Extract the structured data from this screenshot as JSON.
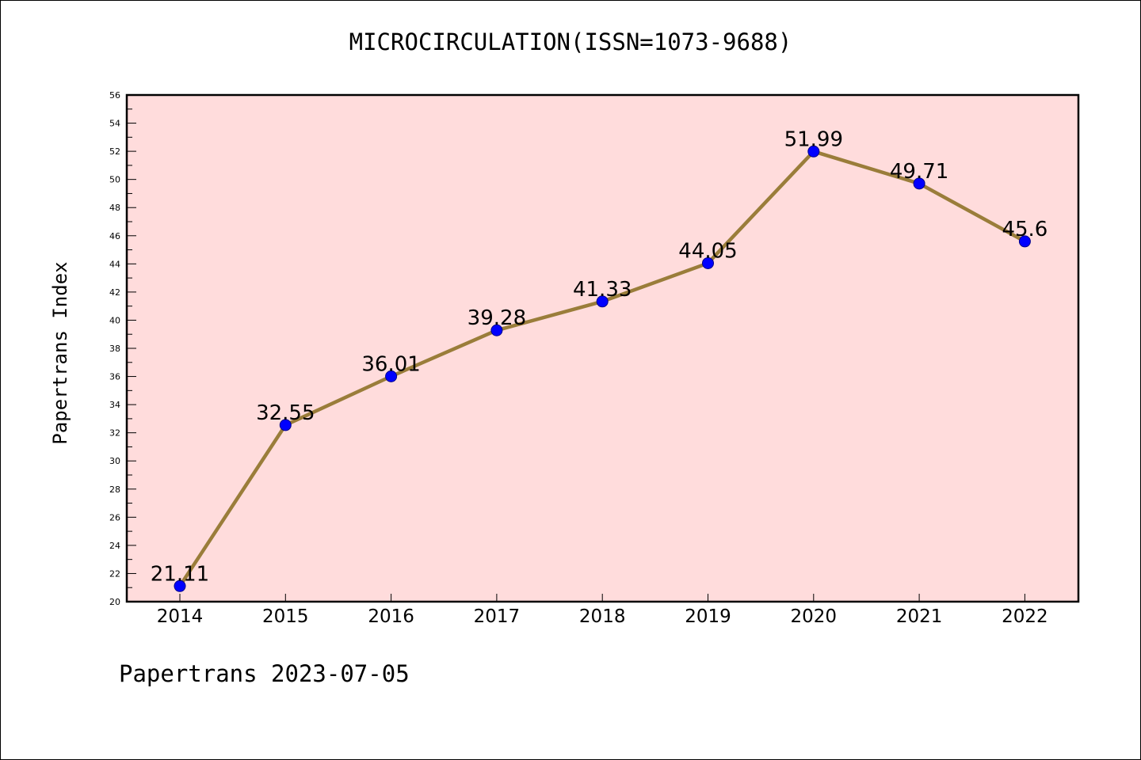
{
  "title": "MICROCIRCULATION(ISSN=1073-9688)",
  "footer": "Papertrans 2023-07-05",
  "chart_data": {
    "type": "line",
    "ylabel": "Papertrans Index",
    "categories": [
      "2014",
      "2015",
      "2016",
      "2017",
      "2018",
      "2019",
      "2020",
      "2021",
      "2022"
    ],
    "values": [
      21.11,
      32.55,
      36.01,
      39.28,
      41.33,
      44.05,
      51.99,
      49.71,
      45.6
    ],
    "data_labels": [
      "21.11",
      "32.55",
      "36.01",
      "39.28",
      "41.33",
      "44.05",
      "51.99",
      "49.71",
      "45.6"
    ],
    "ylim": [
      20,
      56
    ],
    "y_tick_step": 2,
    "grid": false,
    "colors": {
      "plot_background": "#ffdcdc",
      "line": "#9a7d3a",
      "marker": "#0000ff",
      "border": "#000000"
    }
  }
}
